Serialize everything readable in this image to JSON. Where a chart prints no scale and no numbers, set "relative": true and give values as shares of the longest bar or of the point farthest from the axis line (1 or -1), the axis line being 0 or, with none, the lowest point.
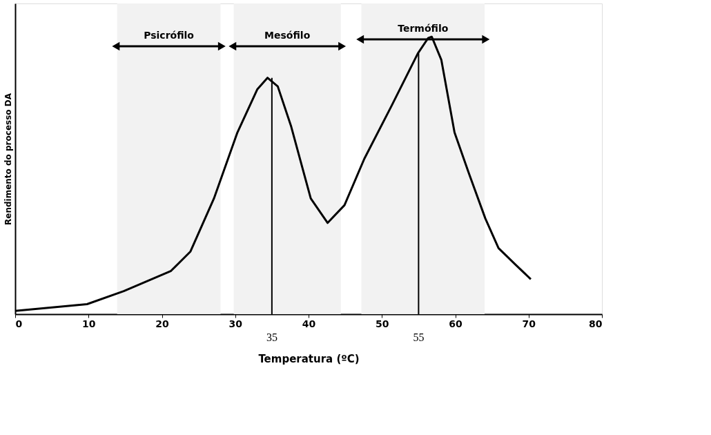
{
  "chart_data": {
    "type": "line",
    "relative": true,
    "xlabel": "Temperatura (ºC)",
    "ylabel": "Rendimento do processo DA",
    "xlim": [
      0,
      80
    ],
    "xticks": [
      0,
      10,
      20,
      30,
      40,
      50,
      60,
      70,
      80
    ],
    "tick_labels": "x",
    "grid": false,
    "line_style": "solid",
    "marker": "none",
    "x": [
      0,
      9.8,
      14.8,
      21.2,
      23.9,
      27.1,
      30.3,
      33.0,
      34.4,
      35.8,
      37.6,
      40.3,
      42.6,
      44.9,
      47.6,
      51.3,
      54.9,
      56.3,
      56.8,
      58.1,
      59.9,
      61.8,
      64.1,
      65.9,
      68.2,
      70.3
    ],
    "series": [
      {
        "color": "#000000",
        "values": [
          0.012,
          0.036,
          0.083,
          0.155,
          0.226,
          0.417,
          0.655,
          0.81,
          0.852,
          0.821,
          0.679,
          0.417,
          0.329,
          0.393,
          0.56,
          0.75,
          0.94,
          0.995,
          1.0,
          0.917,
          0.655,
          0.512,
          0.345,
          0.238,
          0.179,
          0.126
        ]
      }
    ],
    "ref_lines": [
      {
        "axis": "x",
        "value": 35,
        "label": "35",
        "color": "#000000"
      },
      {
        "axis": "x",
        "value": 55,
        "label": "55",
        "color": "#000000"
      }
    ],
    "bands": [
      {
        "axis": "x",
        "from": 13.9,
        "to": 28,
        "label": "Psicrófilo",
        "color": "#f2f2f2"
      },
      {
        "axis": "x",
        "from": 29.8,
        "to": 44.4,
        "label": "Mesófilo",
        "color": "#f2f2f2"
      },
      {
        "axis": "x",
        "from": 47.2,
        "to": 64,
        "label": "Termófilo",
        "color": "#f2f2f2"
      }
    ]
  }
}
